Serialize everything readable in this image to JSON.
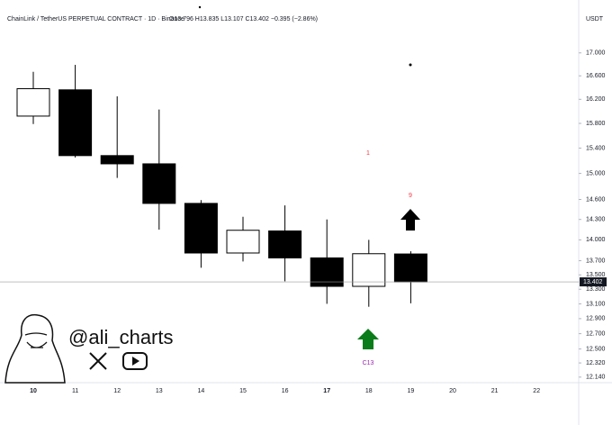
{
  "chart_data": {
    "type": "candlestick",
    "title": "ChainLink / TetherUS PERPETUAL CONTRACT · 1D · Binance",
    "subtitle": "O13.796 H13.835 L13.107 C13.402 −0.395 (−2.86%)",
    "currency": "USDT",
    "categories": [
      "10",
      "11",
      "12",
      "13",
      "14",
      "15",
      "16",
      "17",
      "18",
      "19",
      "20",
      "21",
      "22"
    ],
    "open": [
      15.92,
      16.36,
      15.28,
      15.15,
      14.54,
      13.81,
      14.13,
      13.74,
      13.34,
      13.796,
      null,
      null,
      null
    ],
    "high": [
      16.67,
      16.79,
      16.25,
      16.03,
      14.59,
      14.34,
      14.51,
      14.3,
      14.0,
      13.835,
      null,
      null,
      null
    ],
    "low": [
      15.79,
      15.25,
      14.93,
      14.15,
      13.6,
      13.69,
      13.41,
      13.1,
      13.06,
      13.107,
      null,
      null,
      null
    ],
    "close": [
      16.38,
      15.28,
      15.15,
      14.54,
      13.81,
      14.14,
      13.74,
      13.34,
      13.8,
      13.402,
      null,
      null,
      null
    ],
    "up_color": "#ffffff",
    "down_color": "#000000",
    "log": true,
    "ylim": [
      12.07,
      17.96
    ],
    "yticks": [
      {
        "value": 17,
        "label": "17.000"
      },
      {
        "value": 16.6,
        "label": "16.600"
      },
      {
        "value": 16.2,
        "label": "16.200"
      },
      {
        "value": 15.8,
        "label": "15.800"
      },
      {
        "value": 15.4,
        "label": "15.400"
      },
      {
        "value": 15,
        "label": "15.000"
      },
      {
        "value": 14.6,
        "label": "14.600"
      },
      {
        "value": 14.3,
        "label": "14.300"
      },
      {
        "value": 14,
        "label": "14.000"
      },
      {
        "value": 13.7,
        "label": "13.700"
      },
      {
        "value": 13.5,
        "label": "13.500"
      },
      {
        "value": 13.3,
        "label": "13.300"
      },
      {
        "value": 13.1,
        "label": "13.100"
      },
      {
        "value": 12.9,
        "label": "12.900"
      },
      {
        "value": 12.7,
        "label": "12.700"
      },
      {
        "value": 12.5,
        "label": "12.500"
      },
      {
        "value": 12.32,
        "label": "12.320"
      },
      {
        "value": 12.14,
        "label": "12.140"
      }
    ],
    "annotations": [
      "1",
      "9",
      "C13"
    ],
    "watermark": "@ali_charts"
  }
}
